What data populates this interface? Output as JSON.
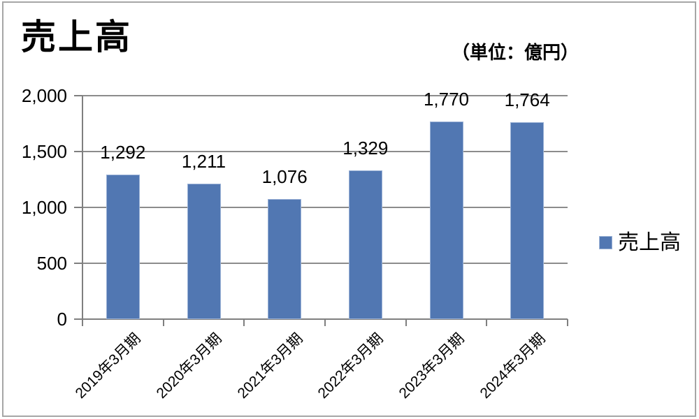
{
  "page": {
    "title": "売上高",
    "unit_label": "（単位：億円）"
  },
  "legend": {
    "label": "売上高"
  },
  "colors": {
    "bar_fill": "#5177B2",
    "bar_border": "#9BB2D6",
    "axis": "#7f7f7f",
    "gridline": "#8c8c8c",
    "frame_border": "#a6a6a6",
    "text": "#000000"
  },
  "chart_data": {
    "type": "bar",
    "title": "売上高",
    "unit": "億円",
    "categories": [
      "2019年3月期",
      "2020年3月期",
      "2021年3月期",
      "2022年3月期",
      "2023年3月期",
      "2024年3月期"
    ],
    "series": [
      {
        "name": "売上高",
        "values": [
          1292,
          1211,
          1076,
          1329,
          1770,
          1764
        ]
      }
    ],
    "data_labels": [
      "1,292",
      "1,211",
      "1,076",
      "1,329",
      "1,770",
      "1,764"
    ],
    "ylim": [
      0,
      2000
    ],
    "ytick_values": [
      0,
      500,
      1000,
      1500,
      2000
    ],
    "ytick_labels": [
      "0",
      "500",
      "1,000",
      "1,500",
      "2,000"
    ],
    "grid": true,
    "legend_position": "right",
    "data_label_position": "outside-end"
  }
}
